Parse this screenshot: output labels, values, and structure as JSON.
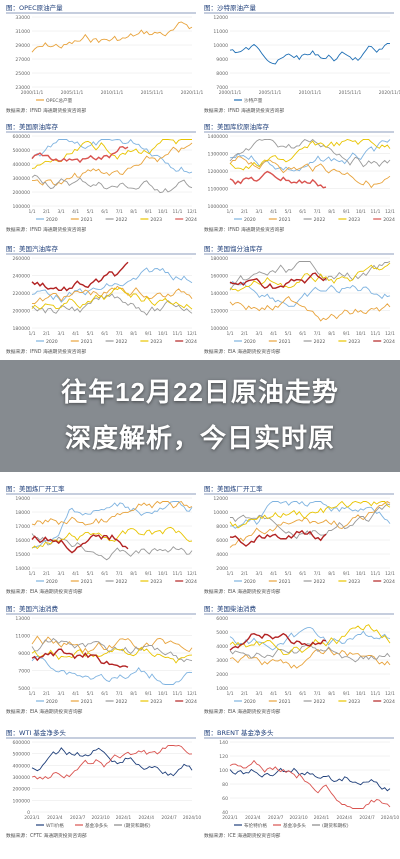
{
  "headline": {
    "line1": "往年12月22日原油走势",
    "line2": "深度解析，今日实时原"
  },
  "panels": [
    {
      "title": "图：OPEC原油产量",
      "source": "数据来源：IFND  海通期货投资咨询部",
      "yticks": [
        "33000",
        "31000",
        "29000",
        "27000",
        "25000",
        "23000"
      ],
      "xticks": [
        "2000/11/1",
        "2005/11/1",
        "2010/11/1",
        "2015/11/1",
        "2020/11/1"
      ],
      "legend": [
        "OPEC总产量"
      ],
      "colors": [
        "#e8a33c"
      ]
    },
    {
      "title": "图：沙特原油产量",
      "source": "数据来源：IFND  海通期货投资咨询部",
      "yticks": [
        "12000",
        "11000",
        "10000",
        "9000",
        "8000",
        "7000"
      ],
      "xticks": [
        "2000/11/1",
        "2005/11/1",
        "2010/11/1",
        "2015/11/1",
        "2020/11/1"
      ],
      "legend": [
        "沙特产量"
      ],
      "colors": [
        "#1f6fb5"
      ]
    },
    {
      "title": "图：美国原油库存",
      "source": "数据来源：IFND  海通期货投资咨询部",
      "yticks": [
        "600000",
        "500000",
        "400000",
        "300000",
        "200000",
        "100000"
      ],
      "xticks": [
        "1/1",
        "2/1",
        "3/1",
        "4/1",
        "5/1",
        "6/1",
        "7/1",
        "8/1",
        "9/1",
        "10/1",
        "11/1",
        "12/1"
      ],
      "legend": [
        "2020",
        "2021",
        "2022",
        "2023",
        "2024"
      ],
      "colors": [
        "#7fb3e0",
        "#e8a33c",
        "#9a9a9a",
        "#e8c400",
        "#d9534f"
      ]
    },
    {
      "title": "图：美国库欣原油库存",
      "source": "数据来源：IFND  海通期货投资咨询部",
      "yticks": [
        "1400000",
        "1300000",
        "1200000",
        "1100000",
        "1000000"
      ],
      "xticks": [
        "1/1",
        "2/1",
        "3/1",
        "4/1",
        "5/1",
        "6/1",
        "7/1",
        "8/1",
        "9/1",
        "10/1",
        "11/1",
        "12/1"
      ],
      "legend": [
        "2020",
        "2021",
        "2022",
        "2023",
        "2024"
      ],
      "colors": [
        "#7fb3e0",
        "#e8a33c",
        "#9a9a9a",
        "#e8c400",
        "#d9534f"
      ]
    },
    {
      "title": "图：美国汽油库存",
      "source": "数据来源：IFND  海通期货投资咨询部",
      "yticks": [
        "260000",
        "240000",
        "220000",
        "200000",
        "180000"
      ],
      "xticks": [
        "1/1",
        "2/1",
        "3/1",
        "4/1",
        "5/1",
        "6/1",
        "7/1",
        "8/1",
        "9/1",
        "10/1",
        "11/1",
        "12/1"
      ],
      "legend": [
        "2020",
        "2021",
        "2022",
        "2023",
        "2024"
      ],
      "colors": [
        "#7fb3e0",
        "#e8a33c",
        "#9a9a9a",
        "#e8c400",
        "#b22222"
      ]
    },
    {
      "title": "图：美国馏分油库存",
      "source": "数据来源：EIA  海通期货投资咨询部",
      "yticks": [
        "180000",
        "160000",
        "140000",
        "120000",
        "100000"
      ],
      "xticks": [
        "1/1",
        "2/1",
        "3/1",
        "4/1",
        "5/1",
        "6/1",
        "7/1",
        "8/1",
        "9/1",
        "10/1",
        "11/1",
        "12/1"
      ],
      "legend": [
        "2020",
        "2021",
        "2022",
        "2023",
        "2024"
      ],
      "colors": [
        "#7fb3e0",
        "#e8a33c",
        "#9a9a9a",
        "#e8c400",
        "#b22222"
      ]
    },
    {
      "title": "图：美国炼厂开工率",
      "source": "数据来源：EIA  海通期货投资咨询部",
      "yticks": [
        "19000",
        "18000",
        "17000",
        "16000",
        "15000",
        "14000"
      ],
      "xticks": [
        "1/1",
        "2/1",
        "3/1",
        "4/1",
        "5/1",
        "6/1",
        "7/1",
        "8/1",
        "9/1",
        "10/1",
        "11/1",
        "12/1"
      ],
      "legend": [
        "2020",
        "2021",
        "2022",
        "2023",
        "2024"
      ],
      "colors": [
        "#7fb3e0",
        "#e8a33c",
        "#9a9a9a",
        "#e8c400",
        "#b22222"
      ]
    },
    {
      "title": "图：美国炼厂开工率",
      "source": "数据来源：EIA  海通期货投资咨询部",
      "yticks": [
        "12000",
        "10000",
        "8000",
        "6000",
        "4000",
        "2000"
      ],
      "xticks": [
        "1/1",
        "2/1",
        "3/1",
        "4/1",
        "5/1",
        "6/1",
        "7/1",
        "8/1",
        "9/1",
        "10/1",
        "11/1",
        "12/1"
      ],
      "legend": [
        "2020",
        "2021",
        "2022",
        "2023",
        "2024"
      ],
      "colors": [
        "#7fb3e0",
        "#e8a33c",
        "#9a9a9a",
        "#e8c400",
        "#b22222"
      ]
    },
    {
      "title": "图：美国汽油消费",
      "source": "数据来源：EIA  海通期货投资咨询部",
      "yticks": [
        "13000",
        "11000",
        "9000",
        "7000",
        "5000"
      ],
      "xticks": [
        "1/1",
        "2/1",
        "3/1",
        "4/1",
        "5/1",
        "6/1",
        "7/1",
        "8/1",
        "9/1",
        "10/1",
        "11/1",
        "12/1"
      ],
      "legend": [
        "2020",
        "2021",
        "2022",
        "2023",
        "2024"
      ],
      "colors": [
        "#7fb3e0",
        "#e8a33c",
        "#9a9a9a",
        "#e8c400",
        "#b22222"
      ]
    },
    {
      "title": "图：美国柴油消费",
      "source": "数据来源：EIA  海通期货投资咨询部",
      "yticks": [
        "6000",
        "5000",
        "4000",
        "3000",
        "2000",
        "1000"
      ],
      "xticks": [
        "1/1",
        "2/1",
        "3/1",
        "4/1",
        "5/1",
        "6/1",
        "7/1",
        "8/1",
        "9/1",
        "10/1",
        "11/1",
        "12/1"
      ],
      "legend": [
        "2020",
        "2021",
        "2022",
        "2023",
        "2024"
      ],
      "colors": [
        "#7fb3e0",
        "#e8a33c",
        "#9a9a9a",
        "#e8c400",
        "#b22222"
      ]
    },
    {
      "title": "图：WTI 基金净多头",
      "source": "数据来源：CFTC  海通期货投资咨询部",
      "yticks": [
        "600000",
        "500000",
        "400000",
        "300000",
        "200000",
        "100000",
        "0"
      ],
      "xticks": [
        "2023/1",
        "2023/4",
        "2023/7",
        "2023/10",
        "2024/1",
        "2024/4",
        "2024/7",
        "2024/10"
      ],
      "legend": [
        "WTI价格",
        "基金净多头",
        "(期货和期权)"
      ],
      "colors": [
        "#1f3f7a",
        "#d9534f",
        "#888888"
      ]
    },
    {
      "title": "图：BRENT 基金净多头",
      "source": "数据来源：ICE  海通期货投资咨询部",
      "yticks": [
        "140",
        "120",
        "100",
        "80",
        "60",
        "40"
      ],
      "xticks": [
        "2023/1",
        "2023/4",
        "2023/7",
        "2023/10",
        "2024/1",
        "2024/4",
        "2024/7",
        "2024/10"
      ],
      "legend": [
        "布伦特价格",
        "基金净多头",
        "(期货和期权)"
      ],
      "colors": [
        "#1f3f7a",
        "#d9534f",
        "#888888"
      ]
    }
  ]
}
